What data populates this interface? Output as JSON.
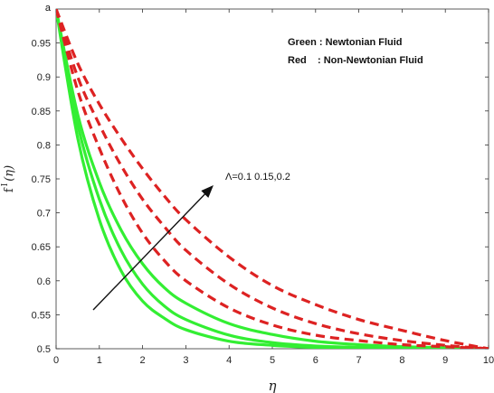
{
  "chart_data": {
    "type": "line",
    "panel_label": "a",
    "xlabel": "η",
    "ylabel_main": "f",
    "ylabel_sup": "I",
    "ylabel_arg": "(η)",
    "xlim": [
      0,
      10
    ],
    "ylim": [
      0.5,
      1.0
    ],
    "xticks": [
      0,
      1,
      2,
      3,
      4,
      5,
      6,
      7,
      8,
      9,
      10
    ],
    "yticks": [
      0.5,
      0.55,
      0.6,
      0.65,
      0.7,
      0.75,
      0.8,
      0.85,
      0.9,
      0.95
    ],
    "grid": false,
    "legend_lines": [
      "Green : Newtonian Fluid",
      "Red    : Non-Newtonian Fluid"
    ],
    "annotation": "Λ=0.1 0.15,0.2",
    "colors": {
      "green": "#33ee33",
      "red": "#dd2222"
    },
    "series": [
      {
        "color": "#33ee33",
        "style": "solid",
        "x": [
          0,
          0.5,
          1,
          1.5,
          2,
          2.5,
          3,
          4,
          5,
          6,
          7,
          8,
          10
        ],
        "y": [
          1.0,
          0.81,
          0.69,
          0.615,
          0.57,
          0.545,
          0.528,
          0.511,
          0.505,
          0.502,
          0.501,
          0.5,
          0.5
        ]
      },
      {
        "color": "#33ee33",
        "style": "solid",
        "x": [
          0,
          0.5,
          1,
          1.5,
          2,
          2.5,
          3,
          4,
          5,
          6,
          7,
          8,
          10
        ],
        "y": [
          1.0,
          0.83,
          0.72,
          0.645,
          0.595,
          0.563,
          0.543,
          0.52,
          0.509,
          0.504,
          0.502,
          0.501,
          0.5
        ]
      },
      {
        "color": "#33ee33",
        "style": "solid",
        "x": [
          0,
          0.5,
          1,
          1.5,
          2,
          2.5,
          3,
          4,
          5,
          6,
          7,
          8,
          10
        ],
        "y": [
          1.0,
          0.845,
          0.745,
          0.675,
          0.625,
          0.59,
          0.567,
          0.537,
          0.521,
          0.511,
          0.506,
          0.503,
          0.5
        ]
      },
      {
        "color": "#dd2222",
        "style": "dashed",
        "x": [
          0,
          0.5,
          1,
          1.5,
          2,
          2.5,
          3,
          4,
          5,
          6,
          7,
          8,
          9,
          10
        ],
        "y": [
          1.0,
          0.88,
          0.795,
          0.725,
          0.67,
          0.63,
          0.6,
          0.56,
          0.535,
          0.52,
          0.512,
          0.506,
          0.503,
          0.5
        ]
      },
      {
        "color": "#dd2222",
        "style": "dashed",
        "x": [
          0,
          0.5,
          1,
          1.5,
          2,
          2.5,
          3,
          4,
          5,
          6,
          7,
          8,
          9,
          10
        ],
        "y": [
          1.0,
          0.9,
          0.83,
          0.77,
          0.72,
          0.68,
          0.645,
          0.595,
          0.56,
          0.537,
          0.522,
          0.512,
          0.505,
          0.5
        ]
      },
      {
        "color": "#dd2222",
        "style": "dashed",
        "x": [
          0,
          0.5,
          1,
          1.5,
          2,
          2.5,
          3,
          4,
          5,
          6,
          7,
          8,
          9,
          10
        ],
        "y": [
          1.0,
          0.92,
          0.86,
          0.81,
          0.765,
          0.725,
          0.69,
          0.635,
          0.593,
          0.565,
          0.543,
          0.527,
          0.512,
          0.5
        ]
      }
    ]
  }
}
